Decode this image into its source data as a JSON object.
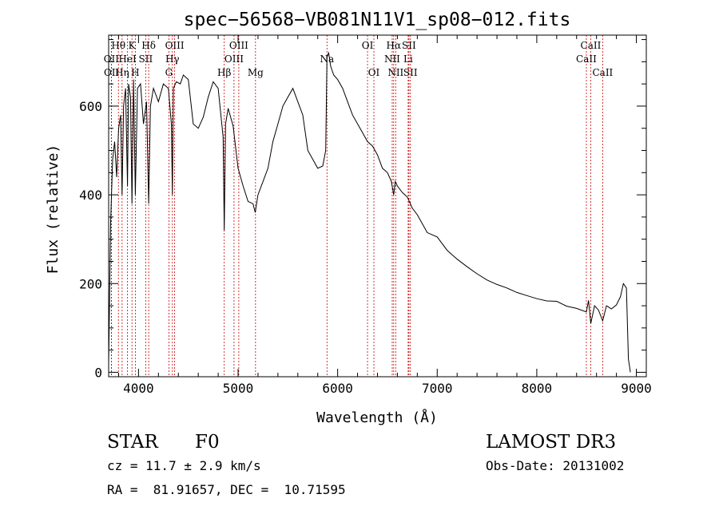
{
  "chart_data": {
    "type": "line",
    "title": "spec−56568−VB081N11V1_sp08−012.fits",
    "xlabel": "Wavelength (Å)",
    "ylabel": "Flux (relative)",
    "xlim": [
      3700,
      9100
    ],
    "ylim": [
      -10,
      760
    ],
    "x_ticks": [
      4000,
      5000,
      6000,
      7000,
      8000,
      9000
    ],
    "y_ticks": [
      0,
      200,
      400,
      600
    ],
    "line_color": "#000000",
    "marker_color": "#cc0000",
    "series": [
      {
        "name": "flux",
        "x": [
          3700,
          3720,
          3740,
          3760,
          3780,
          3800,
          3820,
          3835,
          3850,
          3870,
          3889,
          3900,
          3920,
          3934,
          3950,
          3968,
          3990,
          4020,
          4050,
          4080,
          4102,
          4120,
          4150,
          4200,
          4250,
          4300,
          4330,
          4340,
          4350,
          4380,
          4420,
          4450,
          4500,
          4550,
          4600,
          4650,
          4700,
          4750,
          4800,
          4850,
          4861,
          4875,
          4900,
          4950,
          5000,
          5050,
          5100,
          5150,
          5172,
          5200,
          5250,
          5300,
          5350,
          5400,
          5450,
          5500,
          5550,
          5600,
          5650,
          5700,
          5750,
          5800,
          5850,
          5880,
          5893,
          5910,
          5930,
          5960,
          6000,
          6050,
          6100,
          6150,
          6200,
          6250,
          6300,
          6350,
          6400,
          6450,
          6500,
          6540,
          6563,
          6580,
          6600,
          6650,
          6700,
          6750,
          6800,
          6900,
          7000,
          7100,
          7200,
          7300,
          7400,
          7500,
          7600,
          7700,
          7800,
          7900,
          8000,
          8100,
          8200,
          8300,
          8400,
          8498,
          8520,
          8542,
          8580,
          8620,
          8662,
          8700,
          8750,
          8800,
          8840,
          8870,
          8900,
          8920,
          8940
        ],
        "y": [
          20,
          340,
          480,
          520,
          440,
          550,
          580,
          400,
          600,
          640,
          420,
          650,
          620,
          380,
          660,
          400,
          640,
          650,
          560,
          610,
          380,
          600,
          640,
          610,
          650,
          640,
          560,
          400,
          640,
          655,
          650,
          670,
          660,
          560,
          550,
          575,
          620,
          655,
          640,
          530,
          320,
          560,
          595,
          555,
          460,
          420,
          385,
          380,
          360,
          400,
          430,
          460,
          520,
          560,
          600,
          620,
          640,
          610,
          580,
          500,
          480,
          460,
          465,
          500,
          710,
          720,
          690,
          670,
          660,
          640,
          610,
          580,
          560,
          540,
          520,
          510,
          490,
          460,
          450,
          430,
          400,
          430,
          420,
          405,
          395,
          370,
          355,
          315,
          305,
          275,
          255,
          238,
          222,
          208,
          198,
          190,
          180,
          173,
          166,
          161,
          160,
          149,
          144,
          136,
          162,
          110,
          150,
          140,
          116,
          150,
          143,
          152,
          170,
          200,
          190,
          30,
          0
        ]
      }
    ],
    "lines": [
      {
        "label": "Hθ",
        "wl": 3798,
        "row": 0
      },
      {
        "label": "OII",
        "wl": 3727,
        "row": 1
      },
      {
        "label": "OII",
        "wl": 3729,
        "row": 2
      },
      {
        "label": "K",
        "wl": 3934,
        "row": 0
      },
      {
        "label": "HeI",
        "wl": 3889,
        "row": 1
      },
      {
        "label": "Hη",
        "wl": 3835,
        "row": 2
      },
      {
        "label": "Hδ",
        "wl": 4102,
        "row": 0
      },
      {
        "label": "SII",
        "wl": 4072,
        "row": 1
      },
      {
        "label": "H",
        "wl": 3968,
        "row": 2
      },
      {
        "label": "OIII",
        "wl": 4363,
        "row": 0
      },
      {
        "label": "Hγ",
        "wl": 4340,
        "row": 1
      },
      {
        "label": "G",
        "wl": 4305,
        "row": 2
      },
      {
        "label": "OIII",
        "wl": 5007,
        "row": 0
      },
      {
        "label": "OIII",
        "wl": 4959,
        "row": 1
      },
      {
        "label": "Hβ",
        "wl": 4861,
        "row": 2
      },
      {
        "label": "Mg",
        "wl": 5175,
        "row": 2
      },
      {
        "label": "Na",
        "wl": 5893,
        "row": 1
      },
      {
        "label": "OI",
        "wl": 6300,
        "row": 0
      },
      {
        "label": "OI",
        "wl": 6364,
        "row": 2
      },
      {
        "label": "Hα",
        "wl": 6563,
        "row": 0
      },
      {
        "label": "SII",
        "wl": 6716,
        "row": 0
      },
      {
        "label": "NII",
        "wl": 6548,
        "row": 1
      },
      {
        "label": "Li",
        "wl": 6708,
        "row": 1
      },
      {
        "label": "NII",
        "wl": 6583,
        "row": 2
      },
      {
        "label": "SII",
        "wl": 6731,
        "row": 2
      },
      {
        "label": "CaII",
        "wl": 8542,
        "row": 0
      },
      {
        "label": "CaII",
        "wl": 8498,
        "row": 1
      },
      {
        "label": "CaII",
        "wl": 8662,
        "row": 2
      }
    ]
  },
  "info": {
    "object_class": "STAR",
    "subclass": "F0",
    "survey": "LAMOST DR3",
    "redshift": "cz = 11.7 ± 2.9 km/s",
    "obs_date": "Obs-Date: 20131002",
    "coords": "RA =  81.91657, DEC =  10.71595"
  }
}
